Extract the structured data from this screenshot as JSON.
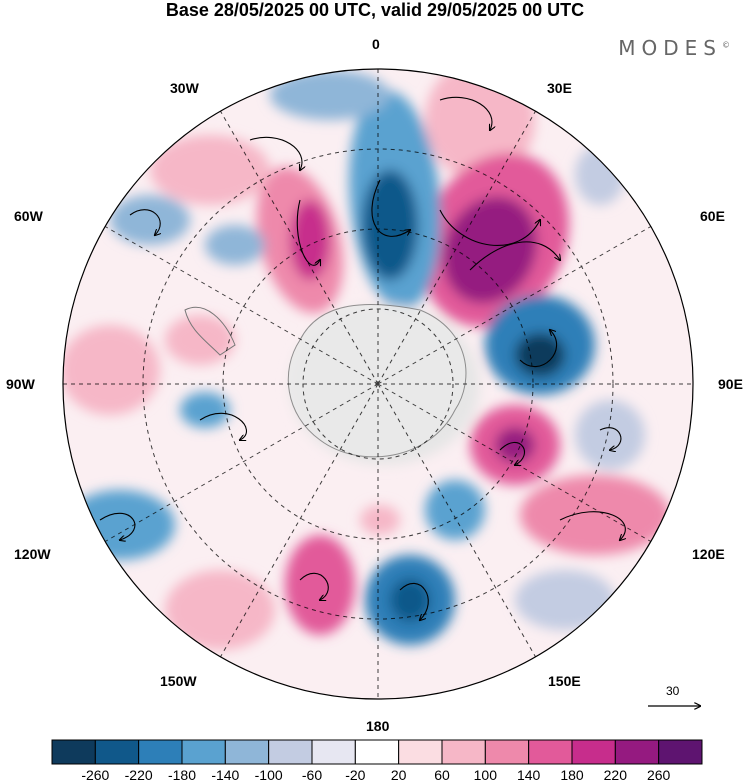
{
  "header": {
    "title": "Base 28/05/2025 00 UTC, valid 29/05/2025 00 UTC",
    "brand": "MODES",
    "brand_mark": "©"
  },
  "map": {
    "projection": "polar-stereographic-south",
    "longitude_labels": {
      "top": "0",
      "top_left": "30W",
      "top_right": "30E",
      "upper_left": "60W",
      "upper_right": "60E",
      "left": "90W",
      "right": "90E",
      "lower_left": "120W",
      "lower_right": "120E",
      "bottom_left": "150W",
      "bottom_right": "150E",
      "bottom": "180"
    },
    "reference_vector_label": "30",
    "colors": {
      "strong_negative": "#0c4a70",
      "negative": "#3b8cc4",
      "weak_negative": "#c8d2e6",
      "neutral": "#ffffff",
      "weak_positive": "#f7c7d2",
      "positive": "#e46aa2",
      "strong_positive": "#5e1470",
      "land": "#e6e6e6"
    }
  },
  "colorbar": {
    "colors": [
      "#0e3a5c",
      "#10588a",
      "#2d7fb8",
      "#5aa2d0",
      "#8fb6d8",
      "#c3cce2",
      "#e7e7f2",
      "#ffffff",
      "#fbdde2",
      "#f6b7c7",
      "#ee89ab",
      "#e25a9a",
      "#c72d8c",
      "#951a80",
      "#5e1470"
    ],
    "labels": [
      "-260",
      "-220",
      "-180",
      "-140",
      "-100",
      "-60",
      "-20",
      "20",
      "60",
      "100",
      "140",
      "180",
      "220",
      "260"
    ]
  }
}
